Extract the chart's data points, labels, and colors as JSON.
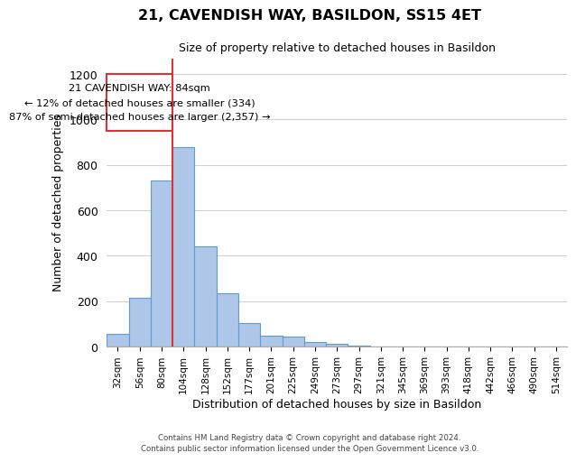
{
  "title": "21, CAVENDISH WAY, BASILDON, SS15 4ET",
  "subtitle": "Size of property relative to detached houses in Basildon",
  "xlabel": "Distribution of detached houses by size in Basildon",
  "ylabel": "Number of detached properties",
  "footer_lines": [
    "Contains HM Land Registry data © Crown copyright and database right 2024.",
    "Contains public sector information licensed under the Open Government Licence v3.0."
  ],
  "bin_labels": [
    "32sqm",
    "56sqm",
    "80sqm",
    "104sqm",
    "128sqm",
    "152sqm",
    "177sqm",
    "201sqm",
    "225sqm",
    "249sqm",
    "273sqm",
    "297sqm",
    "321sqm",
    "345sqm",
    "369sqm",
    "393sqm",
    "418sqm",
    "442sqm",
    "466sqm",
    "490sqm",
    "514sqm"
  ],
  "bar_values": [
    55,
    215,
    730,
    880,
    440,
    235,
    105,
    50,
    45,
    22,
    12,
    5,
    0,
    0,
    0,
    0,
    0,
    0,
    0,
    0,
    0
  ],
  "bar_color": "#aec6e8",
  "bar_edge_color": "#5a9fd4",
  "vline_color": "#e03030",
  "annotation_box_text": "21 CAVENDISH WAY: 84sqm\n← 12% of detached houses are smaller (334)\n87% of semi-detached houses are larger (2,357) →",
  "ylim": [
    0,
    1270
  ],
  "yticks": [
    0,
    200,
    400,
    600,
    800,
    1000,
    1200
  ],
  "bg_color": "#ffffff",
  "grid_color": "#d0d0d0"
}
